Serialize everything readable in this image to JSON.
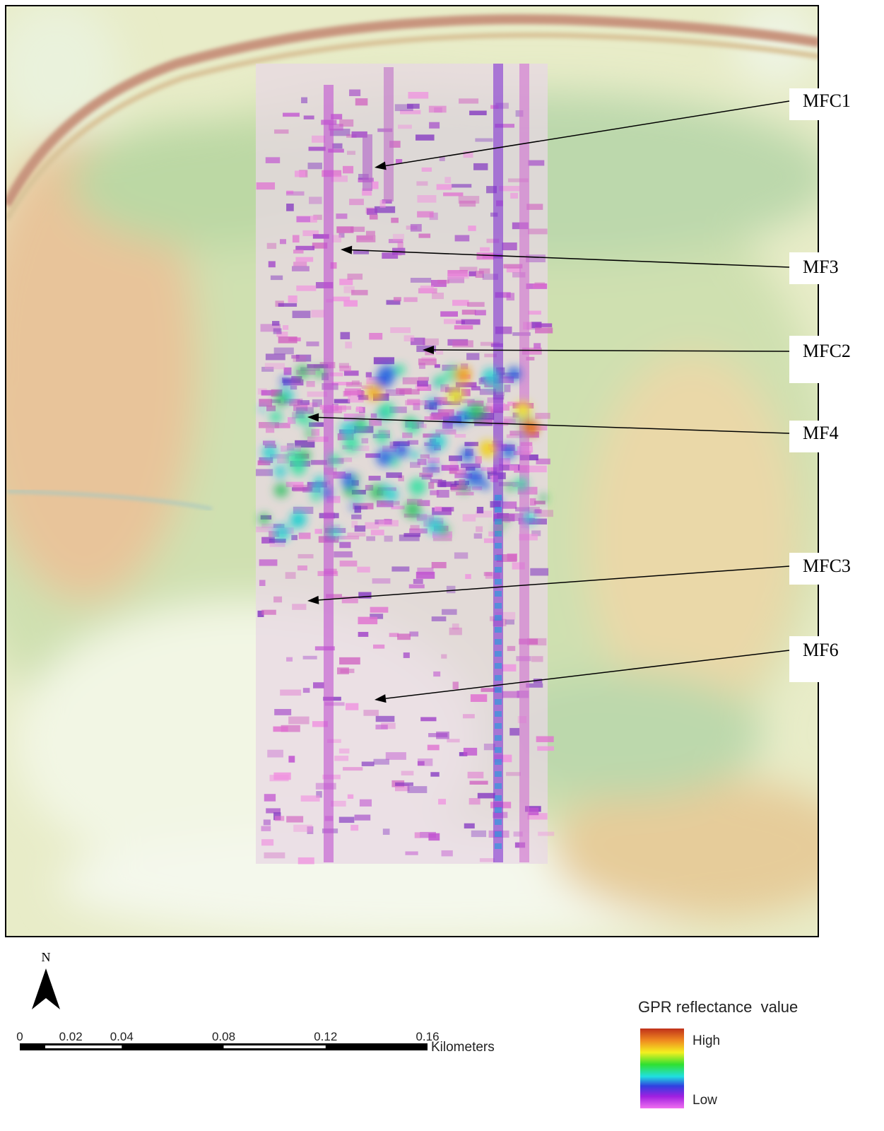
{
  "map": {
    "annotations": [
      "MFC1",
      "MF3",
      "MFC2",
      "MF4",
      "MFC3",
      "MF6"
    ],
    "north_arrow": "N",
    "scale_bar": {
      "ticks": [
        0,
        0.02,
        0.04,
        0.08,
        0.12,
        0.16
      ],
      "unit": "Kilometers"
    },
    "legend": {
      "title": "GPR reflectance  value",
      "high": "High",
      "low": "Low"
    }
  }
}
